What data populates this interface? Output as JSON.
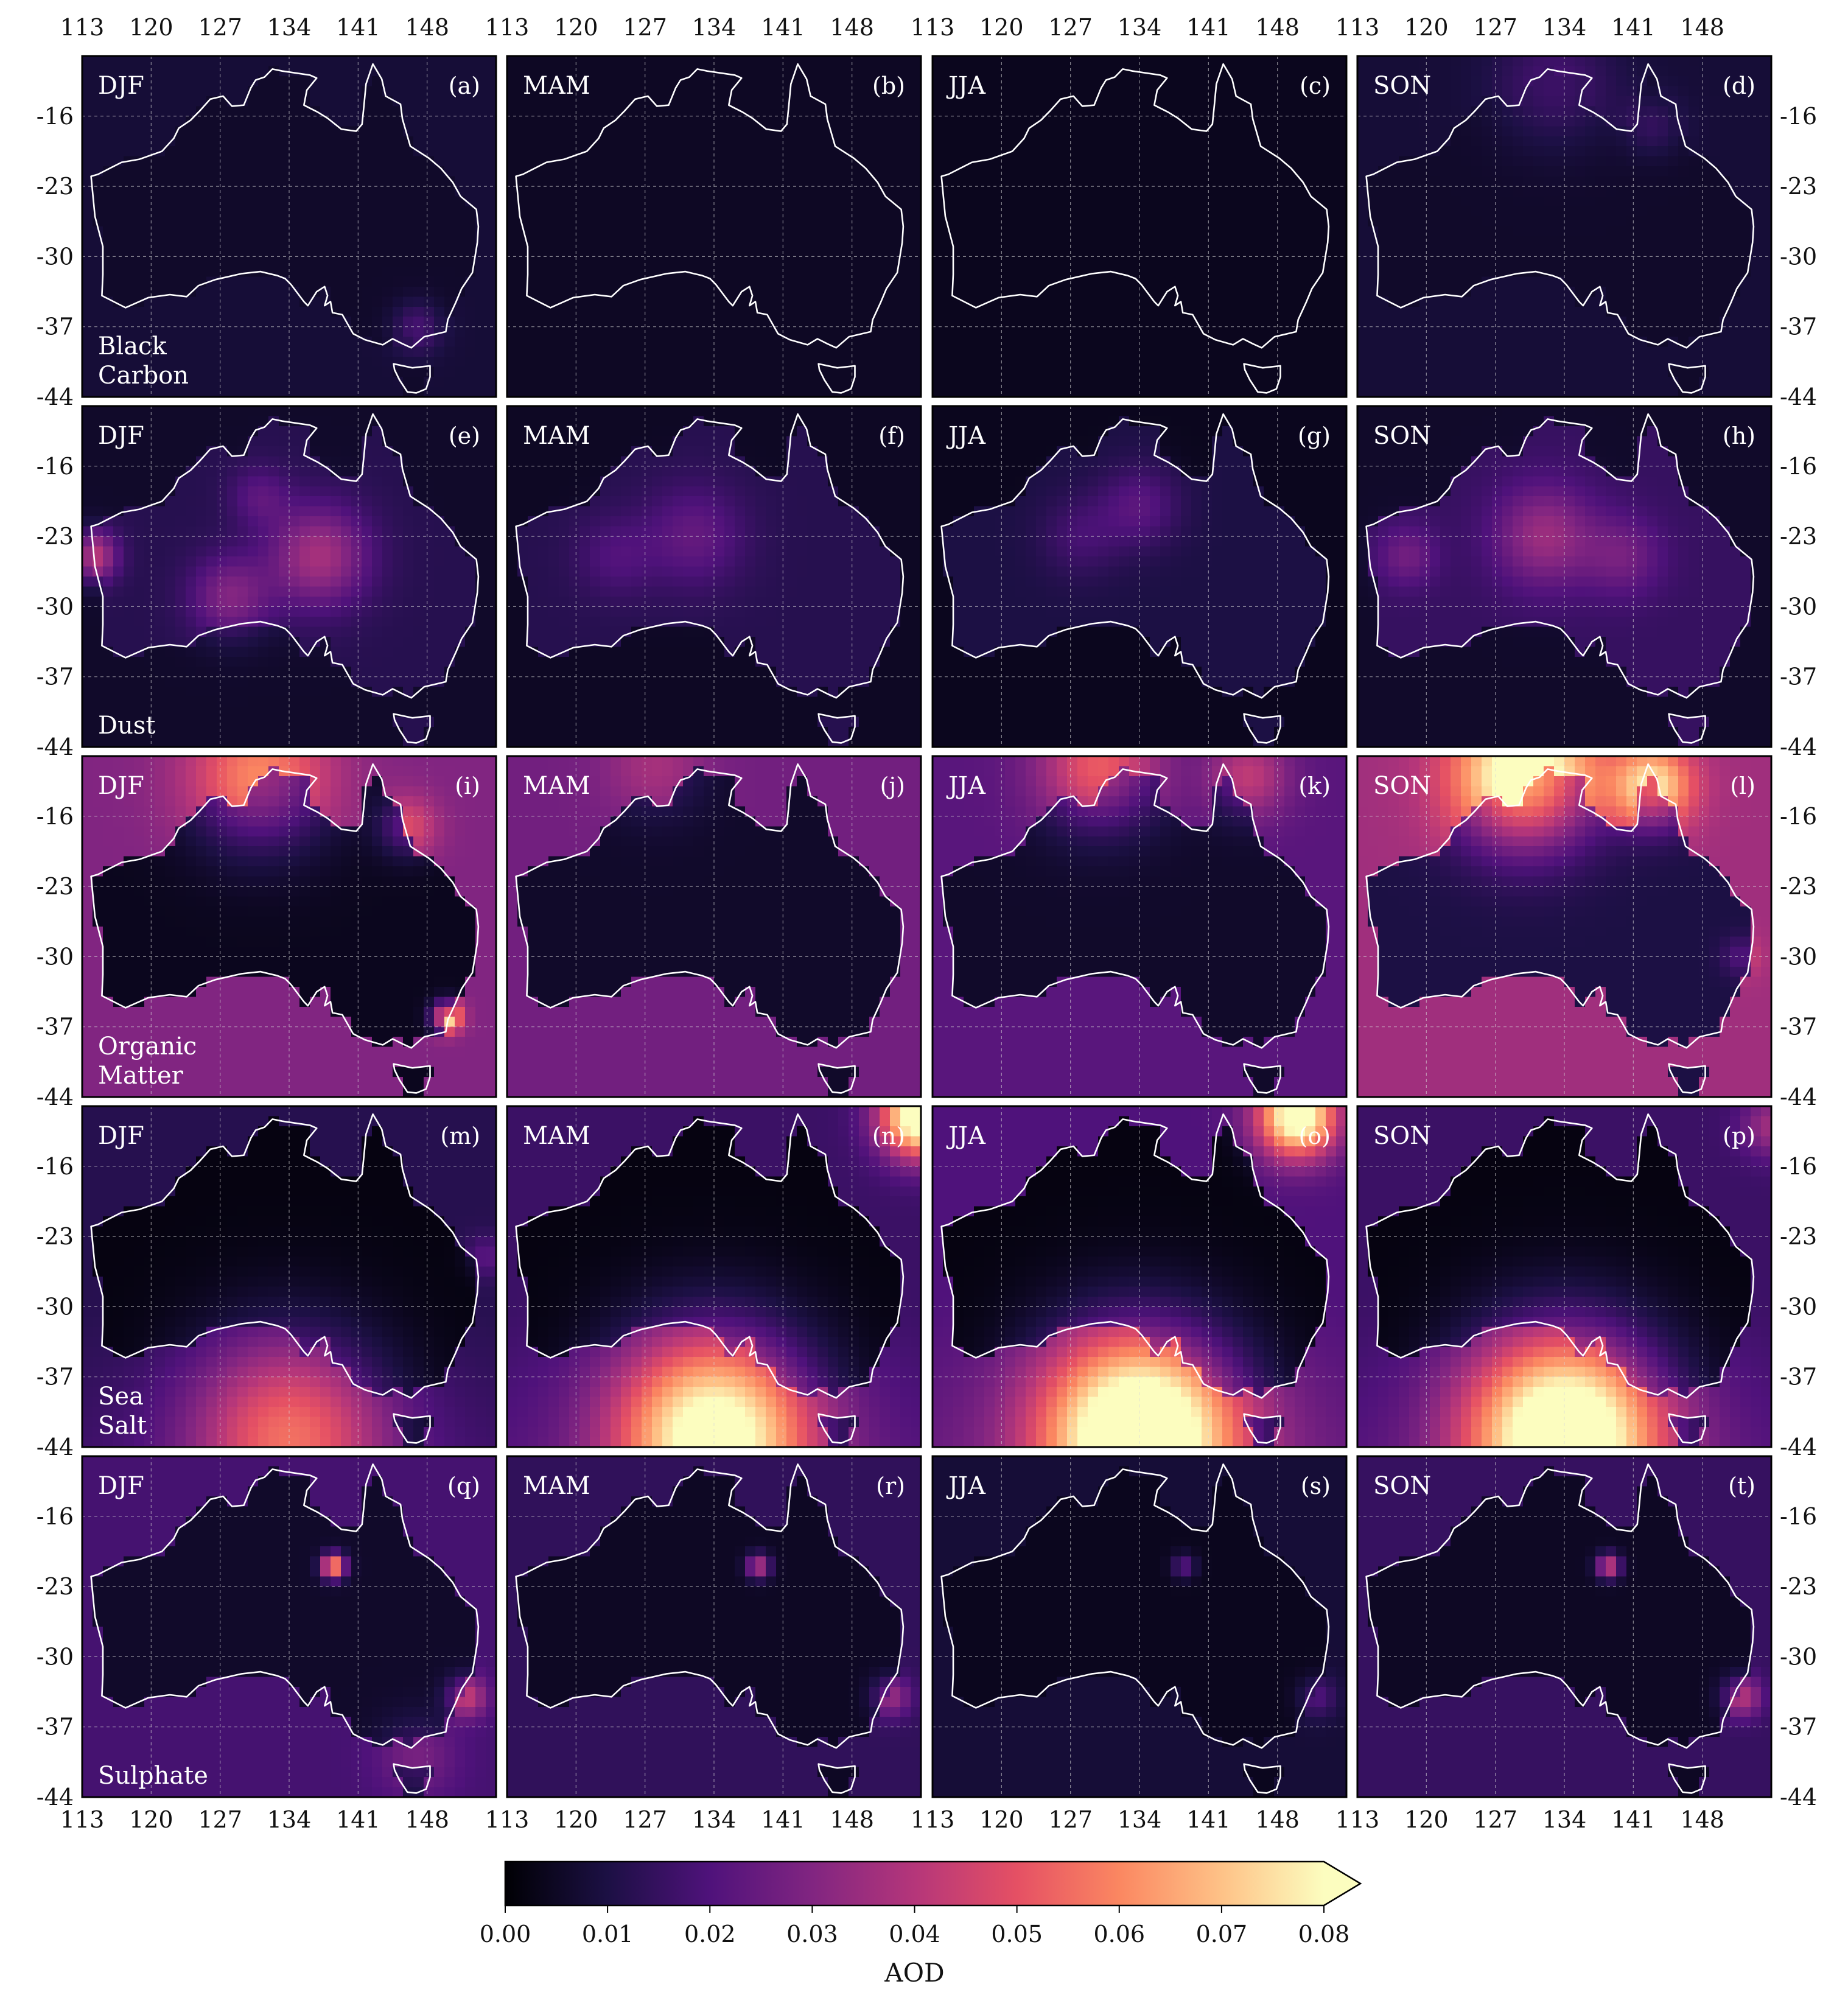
{
  "figure": {
    "colorbar_label": "AOD",
    "colormap": "magma"
  },
  "axes": {
    "lon_ticks": [
      "113",
      "120",
      "127",
      "134",
      "141",
      "148"
    ],
    "lat_ticks": [
      "-16",
      "-23",
      "-30",
      "-37",
      "-44"
    ]
  },
  "colorbar": {
    "ticks": [
      "0.00",
      "0.01",
      "0.02",
      "0.03",
      "0.04",
      "0.05",
      "0.06",
      "0.07",
      "0.08"
    ],
    "range": [
      0,
      0.08
    ],
    "extend": "max",
    "stops": [
      "#000004",
      "#1c1044",
      "#4f127b",
      "#812581",
      "#b5367a",
      "#e55064",
      "#fb8761",
      "#fec287",
      "#fcfdbf"
    ]
  },
  "chart_data": {
    "type": "heatmap",
    "description_variable": "AOD",
    "x_range": [
      113,
      155
    ],
    "y_range": [
      -44,
      -10
    ],
    "rows": [
      {
        "species": "Black\nCarbon",
        "species_lines": [
          "Black",
          "Carbon"
        ]
      },
      {
        "species": "Dust",
        "species_lines": [
          "Dust"
        ]
      },
      {
        "species": "Organic\nMatter",
        "species_lines": [
          "Organic",
          "Matter"
        ]
      },
      {
        "species": "Sea\nSalt",
        "species_lines": [
          "Sea",
          "Salt"
        ]
      },
      {
        "species": "Sulphate",
        "species_lines": [
          "Sulphate"
        ]
      }
    ],
    "seasons": [
      "DJF",
      "MAM",
      "JJA",
      "SON"
    ],
    "panels": [
      {
        "letter": "(a)",
        "season": "DJF",
        "row": 0,
        "base": 0.008,
        "land": 0.006,
        "feats": [
          [
            147,
            -37,
            2.5,
            0.012
          ]
        ]
      },
      {
        "letter": "(b)",
        "season": "MAM",
        "row": 0,
        "base": 0.005,
        "land": 0.005,
        "feats": []
      },
      {
        "letter": "(c)",
        "season": "JJA",
        "row": 0,
        "base": 0.004,
        "land": 0.004,
        "feats": []
      },
      {
        "letter": "(d)",
        "season": "SON",
        "row": 0,
        "base": 0.008,
        "land": 0.006,
        "feats": [
          [
            133,
            -13,
            6,
            0.01
          ],
          [
            143,
            -17,
            3,
            0.008
          ]
        ]
      },
      {
        "letter": "(e)",
        "season": "DJF",
        "row": 1,
        "base": 0.006,
        "land": 0.012,
        "feats": [
          [
            137,
            -25,
            5,
            0.025
          ],
          [
            114,
            -25,
            2.5,
            0.03
          ],
          [
            128,
            -29,
            4,
            0.018
          ],
          [
            131,
            -19,
            3,
            0.01
          ]
        ]
      },
      {
        "letter": "(f)",
        "season": "MAM",
        "row": 1,
        "base": 0.005,
        "land": 0.012,
        "feats": [
          [
            132,
            -23,
            5,
            0.012
          ],
          [
            124,
            -25,
            4,
            0.008
          ]
        ]
      },
      {
        "letter": "(g)",
        "season": "JJA",
        "row": 1,
        "base": 0.004,
        "land": 0.01,
        "feats": [
          [
            134,
            -20,
            4,
            0.012
          ],
          [
            128,
            -23,
            4,
            0.008
          ]
        ]
      },
      {
        "letter": "(h)",
        "season": "SON",
        "row": 1,
        "base": 0.006,
        "land": 0.015,
        "feats": [
          [
            132,
            -23,
            5,
            0.02
          ],
          [
            140,
            -25,
            4,
            0.012
          ],
          [
            118,
            -25,
            3,
            0.012
          ]
        ]
      },
      {
        "letter": "(i)",
        "season": "DJF",
        "row": 2,
        "base": 0.03,
        "land": 0.004,
        "feats": [
          [
            131,
            -12,
            7,
            0.03
          ],
          [
            146,
            -17,
            3,
            0.018
          ],
          [
            150,
            -36,
            1.5,
            0.05
          ]
        ]
      },
      {
        "letter": "(j)",
        "season": "MAM",
        "row": 2,
        "base": 0.027,
        "land": 0.006,
        "feats": [
          [
            128,
            -11,
            5,
            0.01
          ]
        ]
      },
      {
        "letter": "(k)",
        "season": "JJA",
        "row": 2,
        "base": 0.022,
        "land": 0.006,
        "feats": [
          [
            130,
            -11,
            6,
            0.03
          ],
          [
            145,
            -12,
            4,
            0.02
          ]
        ]
      },
      {
        "letter": "(l)",
        "season": "SON",
        "row": 2,
        "base": 0.036,
        "land": 0.01,
        "feats": [
          [
            130,
            -12,
            7,
            0.055
          ],
          [
            143,
            -13,
            4,
            0.04
          ],
          [
            152,
            -30,
            2,
            0.01
          ]
        ]
      },
      {
        "letter": "(m)",
        "season": "DJF",
        "row": 3,
        "base": 0.012,
        "land": 0.002,
        "feats": [
          [
            134,
            -43,
            10,
            0.04
          ],
          [
            154,
            -25,
            2,
            0.01
          ]
        ]
      },
      {
        "letter": "(n)",
        "season": "MAM",
        "row": 3,
        "base": 0.016,
        "land": 0.002,
        "feats": [
          [
            134,
            -43,
            10,
            0.07
          ],
          [
            155,
            -11,
            4,
            0.08
          ]
        ]
      },
      {
        "letter": "(o)",
        "season": "JJA",
        "row": 3,
        "base": 0.02,
        "land": 0.002,
        "feats": [
          [
            134,
            -43,
            10,
            0.08
          ],
          [
            150,
            -11,
            4,
            0.07
          ]
        ]
      },
      {
        "letter": "(p)",
        "season": "SON",
        "row": 3,
        "base": 0.016,
        "land": 0.002,
        "feats": [
          [
            134,
            -43,
            10,
            0.08
          ],
          [
            155,
            -12,
            3,
            0.02
          ]
        ]
      },
      {
        "letter": "(q)",
        "season": "DJF",
        "row": 4,
        "base": 0.018,
        "land": 0.006,
        "feats": [
          [
            138.5,
            -21,
            1.2,
            0.06
          ],
          [
            152,
            -34,
            2,
            0.025
          ],
          [
            147,
            -40,
            4,
            0.01
          ]
        ]
      },
      {
        "letter": "(r)",
        "season": "MAM",
        "row": 4,
        "base": 0.014,
        "land": 0.005,
        "feats": [
          [
            138.5,
            -21,
            1.2,
            0.035
          ],
          [
            152,
            -34,
            2,
            0.02
          ]
        ]
      },
      {
        "letter": "(s)",
        "season": "JJA",
        "row": 4,
        "base": 0.008,
        "land": 0.004,
        "feats": [
          [
            138.5,
            -21,
            1.2,
            0.018
          ],
          [
            152,
            -34,
            2,
            0.012
          ]
        ]
      },
      {
        "letter": "(t)",
        "season": "SON",
        "row": 4,
        "base": 0.015,
        "land": 0.005,
        "feats": [
          [
            138.5,
            -21,
            1.2,
            0.04
          ],
          [
            152,
            -34,
            2,
            0.025
          ]
        ]
      }
    ],
    "australia_outline": [
      [
        113.9,
        -22
      ],
      [
        114.3,
        -26
      ],
      [
        115.1,
        -29
      ],
      [
        115.1,
        -31.8
      ],
      [
        115,
        -33.9
      ],
      [
        117.4,
        -35.1
      ],
      [
        119.7,
        -34.1
      ],
      [
        121.9,
        -33.8
      ],
      [
        123.6,
        -34
      ],
      [
        124.8,
        -32.9
      ],
      [
        126.5,
        -32.3
      ],
      [
        129.2,
        -31.7
      ],
      [
        131.1,
        -31.5
      ],
      [
        132.8,
        -31.9
      ],
      [
        133.6,
        -32.2
      ],
      [
        134.2,
        -32.8
      ],
      [
        135.5,
        -34.5
      ],
      [
        135.9,
        -34.9
      ],
      [
        136.8,
        -33.5
      ],
      [
        137.6,
        -33
      ],
      [
        137.9,
        -33.9
      ],
      [
        137.6,
        -34.9
      ],
      [
        138.2,
        -34.5
      ],
      [
        138.4,
        -35.6
      ],
      [
        139.4,
        -35.8
      ],
      [
        140.5,
        -37.7
      ],
      [
        141.7,
        -38.3
      ],
      [
        143.5,
        -38.8
      ],
      [
        144.5,
        -38.2
      ],
      [
        145.5,
        -38.7
      ],
      [
        146.4,
        -39.1
      ],
      [
        147.7,
        -38
      ],
      [
        149.9,
        -37.5
      ],
      [
        150.1,
        -36.3
      ],
      [
        150.9,
        -34.6
      ],
      [
        151.5,
        -33.2
      ],
      [
        152.6,
        -31.6
      ],
      [
        153.1,
        -28.6
      ],
      [
        153.2,
        -27
      ],
      [
        153,
        -25.3
      ],
      [
        151.4,
        -24
      ],
      [
        150.6,
        -22.6
      ],
      [
        149.4,
        -21.2
      ],
      [
        148.2,
        -20.2
      ],
      [
        146.3,
        -19
      ],
      [
        145.5,
        -16.3
      ],
      [
        145.3,
        -14.8
      ],
      [
        143.8,
        -14
      ],
      [
        143.4,
        -12.3
      ],
      [
        142.5,
        -10.8
      ],
      [
        141.8,
        -12.8
      ],
      [
        141.6,
        -14.9
      ],
      [
        141.4,
        -16.8
      ],
      [
        140.8,
        -17.5
      ],
      [
        139.3,
        -17.3
      ],
      [
        137.9,
        -16.2
      ],
      [
        136.9,
        -15.6
      ],
      [
        135.5,
        -14.9
      ],
      [
        135.8,
        -13.4
      ],
      [
        136.8,
        -12.2
      ],
      [
        136.1,
        -11.9
      ],
      [
        133.3,
        -11.5
      ],
      [
        132.3,
        -11.3
      ],
      [
        131.5,
        -12.1
      ],
      [
        130.6,
        -12.4
      ],
      [
        130.1,
        -13.2
      ],
      [
        129.4,
        -14.9
      ],
      [
        128.2,
        -15
      ],
      [
        127.3,
        -14
      ],
      [
        126,
        -14.3
      ],
      [
        124.9,
        -15.5
      ],
      [
        124,
        -16.4
      ],
      [
        122.8,
        -17.2
      ],
      [
        122.3,
        -18.2
      ],
      [
        121.1,
        -19.5
      ],
      [
        118.8,
        -20.3
      ],
      [
        117,
        -20.6
      ],
      [
        116,
        -21.1
      ],
      [
        114.6,
        -21.8
      ],
      [
        113.9,
        -22
      ]
    ],
    "tasmania_outline": [
      [
        144.6,
        -40.7
      ],
      [
        146.5,
        -41.1
      ],
      [
        148.3,
        -40.9
      ],
      [
        148.3,
        -42
      ],
      [
        147.9,
        -43.2
      ],
      [
        146.9,
        -43.6
      ],
      [
        146,
        -43.5
      ],
      [
        145.2,
        -42.3
      ],
      [
        144.7,
        -41.3
      ],
      [
        144.6,
        -40.7
      ]
    ]
  }
}
